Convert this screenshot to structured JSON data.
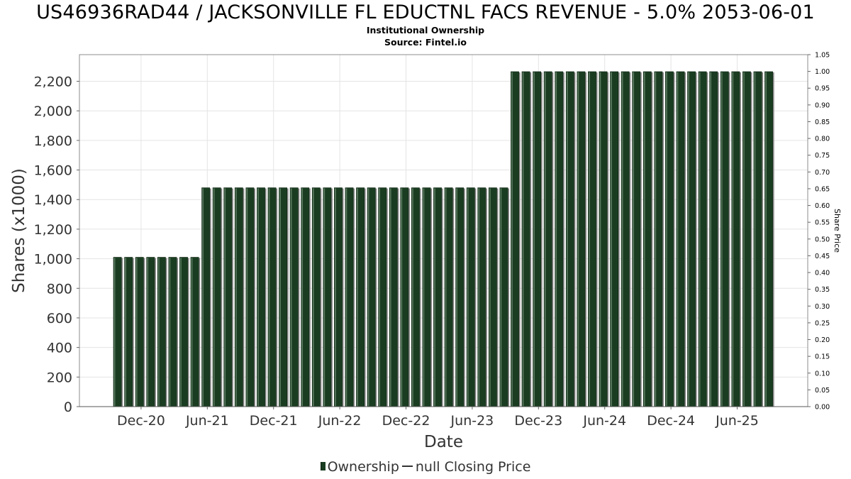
{
  "chart_data": {
    "type": "bar",
    "title": "US46936RAD44 / JACKSONVILLE FL EDUCTNL FACS REVENUE - 5.0% 2053-06-01",
    "subtitle": "Institutional Ownership",
    "source": "Source: Fintel.io",
    "xlabel": "Date",
    "ylabel": "Shares (x1000)",
    "y2label": "Share Price",
    "ylim": [
      0,
      2380
    ],
    "y2lim": [
      0,
      1.05
    ],
    "y_ticks": [
      0,
      200,
      400,
      600,
      800,
      1000,
      1200,
      1400,
      1600,
      1800,
      2000,
      2200
    ],
    "y_tick_labels": [
      "0",
      "200",
      "400",
      "600",
      "800",
      "1,000",
      "1,200",
      "1,400",
      "1,600",
      "1,800",
      "2,000",
      "2,200"
    ],
    "y2_ticks": [
      0,
      0.05,
      0.1,
      0.15,
      0.2,
      0.25,
      0.3,
      0.35,
      0.4,
      0.45,
      0.5,
      0.55,
      0.6,
      0.65,
      0.7,
      0.75,
      0.8,
      0.85,
      0.9,
      0.95,
      1.0,
      1.05
    ],
    "y2_tick_labels": [
      "0.00",
      "0.05",
      "0.10",
      "0.15",
      "0.20",
      "0.25",
      "0.30",
      "0.35",
      "0.40",
      "0.45",
      "0.50",
      "0.55",
      "0.60",
      "0.65",
      "0.70",
      "0.75",
      "0.80",
      "0.85",
      "0.90",
      "0.95",
      "1.00",
      "1.05"
    ],
    "x_tick_labels": [
      "Dec-20",
      "Jun-21",
      "Dec-21",
      "Jun-22",
      "Dec-22",
      "Jun-23",
      "Dec-23",
      "Jun-24",
      "Dec-24",
      "Jun-25"
    ],
    "grid": true,
    "legend_position": "bottom-center",
    "series": [
      {
        "name": "Ownership",
        "color": "#1a3d21",
        "values": [
          1010,
          1010,
          1010,
          1010,
          1010,
          1010,
          1010,
          1010,
          1480,
          1480,
          1480,
          1480,
          1480,
          1480,
          1480,
          1480,
          1480,
          1480,
          1480,
          1480,
          1480,
          1480,
          1480,
          1480,
          1480,
          1480,
          1480,
          1480,
          1480,
          1480,
          1480,
          1480,
          1480,
          1480,
          1480,
          1480,
          2265,
          2265,
          2265,
          2265,
          2265,
          2265,
          2265,
          2265,
          2265,
          2265,
          2265,
          2265,
          2265,
          2265,
          2265,
          2265,
          2265,
          2265,
          2265,
          2265,
          2265,
          2265,
          2265,
          2265
        ]
      },
      {
        "name": "null Closing Price",
        "color": "#333333",
        "values": []
      }
    ]
  },
  "legend": {
    "ownership_label": "Ownership",
    "price_label": "null Closing Price"
  }
}
